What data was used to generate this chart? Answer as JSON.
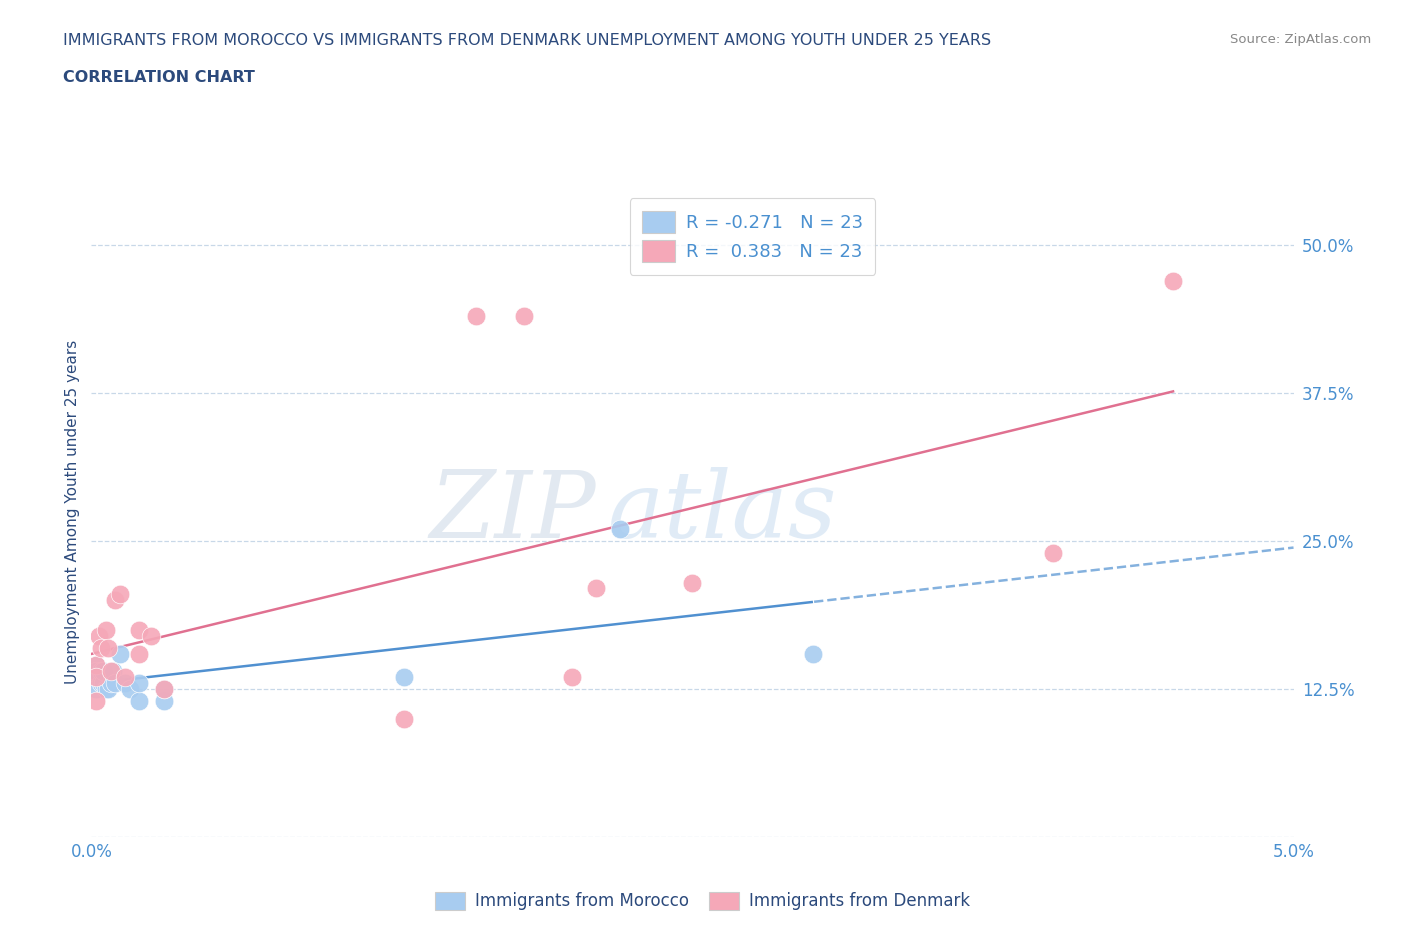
{
  "title_line1": "IMMIGRANTS FROM MOROCCO VS IMMIGRANTS FROM DENMARK UNEMPLOYMENT AMONG YOUTH UNDER 25 YEARS",
  "title_line2": "CORRELATION CHART",
  "source": "Source: ZipAtlas.com",
  "ylabel": "Unemployment Among Youth under 25 years",
  "xlim": [
    0.0,
    0.05
  ],
  "ylim": [
    0.0,
    0.55
  ],
  "yticks": [
    0.0,
    0.125,
    0.25,
    0.375,
    0.5
  ],
  "ytick_labels": [
    "",
    "12.5%",
    "25.0%",
    "37.5%",
    "50.0%"
  ],
  "xticks": [
    0.0,
    0.01,
    0.02,
    0.03,
    0.04,
    0.05
  ],
  "xtick_labels": [
    "0.0%",
    "",
    "",
    "",
    "",
    "5.0%"
  ],
  "morocco_x": [
    0.0002,
    0.0002,
    0.0002,
    0.0002,
    0.0004,
    0.0004,
    0.0005,
    0.0005,
    0.0006,
    0.0007,
    0.0008,
    0.0009,
    0.001,
    0.0012,
    0.0014,
    0.0016,
    0.002,
    0.002,
    0.003,
    0.003,
    0.013,
    0.022,
    0.03
  ],
  "morocco_y": [
    0.145,
    0.135,
    0.125,
    0.14,
    0.13,
    0.14,
    0.13,
    0.14,
    0.125,
    0.125,
    0.13,
    0.14,
    0.13,
    0.155,
    0.13,
    0.125,
    0.115,
    0.13,
    0.115,
    0.125,
    0.135,
    0.26,
    0.155
  ],
  "denmark_x": [
    0.0002,
    0.0002,
    0.0002,
    0.0003,
    0.0004,
    0.0006,
    0.0007,
    0.0008,
    0.001,
    0.0012,
    0.0014,
    0.002,
    0.002,
    0.0025,
    0.003,
    0.013,
    0.016,
    0.018,
    0.02,
    0.021,
    0.025,
    0.04,
    0.045
  ],
  "denmark_y": [
    0.145,
    0.135,
    0.115,
    0.17,
    0.16,
    0.175,
    0.16,
    0.14,
    0.2,
    0.205,
    0.135,
    0.175,
    0.155,
    0.17,
    0.125,
    0.1,
    0.44,
    0.44,
    0.135,
    0.21,
    0.215,
    0.24,
    0.47
  ],
  "morocco_color": "#a8ccf0",
  "denmark_color": "#f5a8b8",
  "morocco_trend_color": "#5090d0",
  "denmark_trend_color": "#e07090",
  "R_morocco": -0.271,
  "N_morocco": 23,
  "R_denmark": 0.383,
  "N_denmark": 23,
  "watermark_zip": "ZIP",
  "watermark_atlas": "atlas",
  "title_color": "#2c4a7c",
  "axis_label_color": "#2c4a7c",
  "tick_color": "#4a90d0",
  "grid_color": "#c8d8e8",
  "background_color": "#ffffff",
  "legend_box_color": "#f5f5f5"
}
